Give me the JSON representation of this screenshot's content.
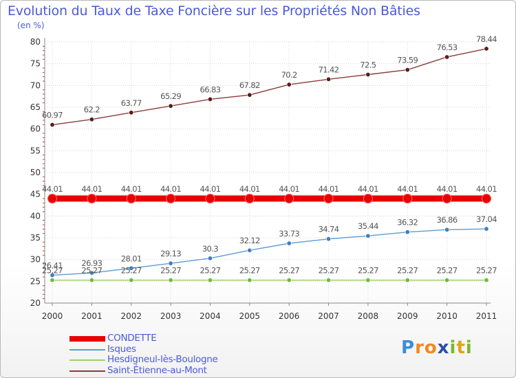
{
  "header": {
    "title": "Evolution du Taux de Taxe Foncière sur les Propriétés Non Bâties",
    "unit": "(en %)"
  },
  "logo": {
    "text": "Proxiti",
    "letters": [
      "P",
      "r",
      "o",
      "x",
      "i",
      "t",
      "i"
    ],
    "colors": [
      "#3a8fd6",
      "#f08a1c",
      "#f08a1c",
      "#2e4fa8",
      "#7ab82e",
      "#e0a21a",
      "#7ab82e"
    ]
  },
  "chart_data": {
    "type": "line",
    "title": "Evolution du Taux de Taxe Foncière sur les Propriétés Non Bâties",
    "xlabel": "",
    "ylabel": "(en %)",
    "ylim": [
      20,
      80
    ],
    "yticks": [
      20,
      25,
      30,
      35,
      40,
      45,
      50,
      55,
      60,
      65,
      70,
      75,
      80
    ],
    "x": [
      "2000",
      "2001",
      "2002",
      "2003",
      "2004",
      "2005",
      "2006",
      "2007",
      "2008",
      "2009",
      "2010",
      "2011"
    ],
    "series": [
      {
        "name": "CONDETTE",
        "color": "#e80000",
        "values": [
          44.01,
          44.01,
          44.01,
          44.01,
          44.01,
          44.01,
          44.01,
          44.01,
          44.01,
          44.01,
          44.01,
          44.01
        ],
        "labels": [
          "44.01",
          "44.01",
          "44.01",
          "44.01",
          "44.01",
          "44.01",
          "44.01",
          "44.01",
          "44.01",
          "44.01",
          "44.01",
          "44.01"
        ]
      },
      {
        "name": "Isques",
        "color": "#5b9bd5",
        "values": [
          26.41,
          26.93,
          28.01,
          29.13,
          30.3,
          32.12,
          33.73,
          34.74,
          35.44,
          36.32,
          36.86,
          37.04
        ],
        "labels": [
          "26.41",
          "26.93",
          "28.01",
          "29.13",
          "30.3",
          "32.12",
          "33.73",
          "34.74",
          "35.44",
          "36.32",
          "36.86",
          "37.04"
        ]
      },
      {
        "name": "Hesdigneul-lès-Boulogne",
        "color": "#9bd36b",
        "values": [
          25.27,
          25.27,
          25.27,
          25.27,
          25.27,
          25.27,
          25.27,
          25.27,
          25.27,
          25.27,
          25.27,
          25.27
        ],
        "labels": [
          "25.27",
          "25.27",
          "25.27",
          "25.27",
          "25.27",
          "25.27",
          "25.27",
          "25.27",
          "25.27",
          "25.27",
          "25.27",
          "25.27"
        ]
      },
      {
        "name": "Saint-Étienne-au-Mont",
        "color": "#8b3a3a",
        "values": [
          60.97,
          62.2,
          63.77,
          65.29,
          66.83,
          67.82,
          70.2,
          71.42,
          72.5,
          73.59,
          76.53,
          78.44
        ],
        "labels": [
          "60.97",
          "62.2",
          "63.77",
          "65.29",
          "66.83",
          "67.82",
          "70.2",
          "71.42",
          "72.5",
          "73.59",
          "76.53",
          "78.44"
        ]
      }
    ],
    "legend": [
      "CONDETTE",
      "Isques",
      "Hesdigneul-lès-Boulogne",
      "Saint-Étienne-au-Mont"
    ],
    "legend_position": "bottom-left"
  }
}
